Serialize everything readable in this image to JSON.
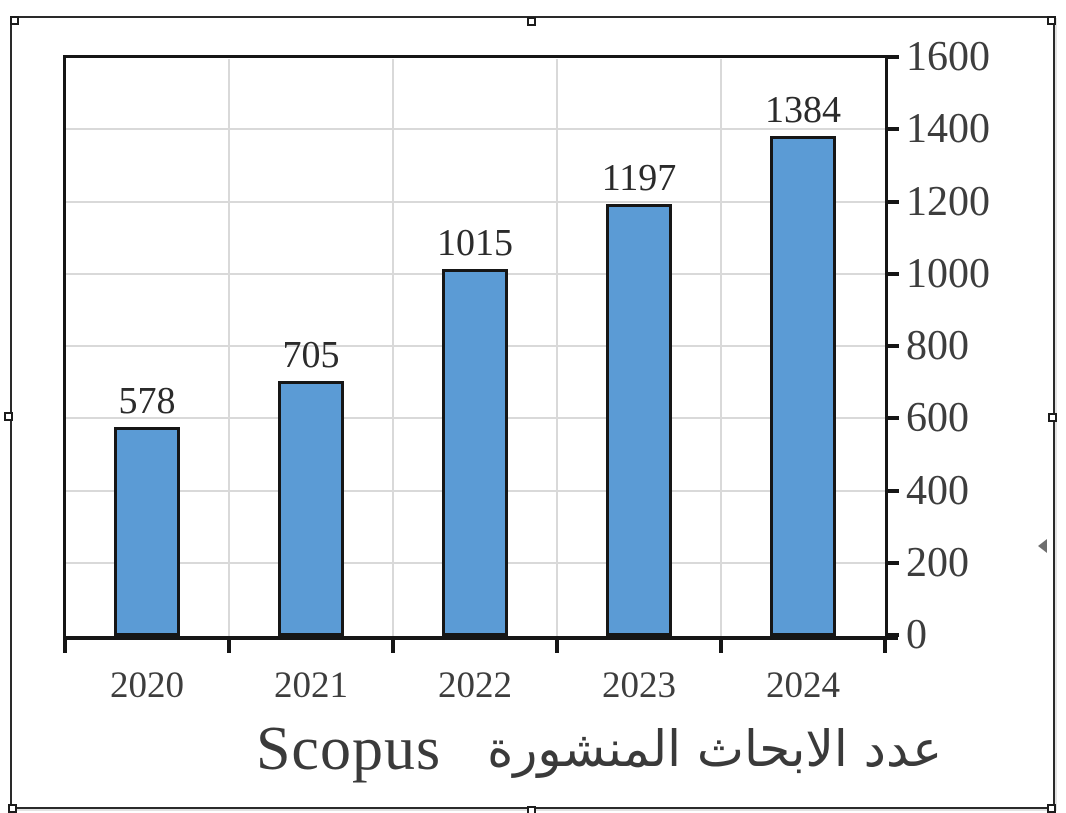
{
  "selection": {
    "handles": [
      {
        "id": "top-left"
      },
      {
        "id": "top-center"
      },
      {
        "id": "top-right"
      },
      {
        "id": "middle-left"
      },
      {
        "id": "middle-right"
      },
      {
        "id": "bottom-left"
      },
      {
        "id": "bottom-center"
      },
      {
        "id": "bottom-right"
      }
    ]
  },
  "chart_data": {
    "type": "bar",
    "title": "عدد الابحاث المنشورة Scopus",
    "title_arabic": "عدد الابحاث المنشورة",
    "title_latin": "Scopus",
    "categories": [
      "2020",
      "2021",
      "2022",
      "2023",
      "2024"
    ],
    "values": [
      578,
      705,
      1015,
      1197,
      1384
    ],
    "data_labels": [
      "578",
      "705",
      "1015",
      "1197",
      "1384"
    ],
    "y_ticks_top_to_bottom": [
      "1600",
      "1400",
      "1200",
      "1000",
      "800",
      "600",
      "400",
      "200",
      "0"
    ],
    "ylim": [
      0,
      1600
    ],
    "y_step": 200,
    "y_axis_side": "right",
    "grid": true,
    "legend": "none",
    "colors": {
      "bar_fill": "#5B9BD5",
      "bar_border": "#161616",
      "grid_line": "#D9D9D9",
      "axis_line": "#161616",
      "tick_label": "#3D3D3D",
      "data_label": "#2B2B2B",
      "title": "#3A3A3A"
    }
  }
}
